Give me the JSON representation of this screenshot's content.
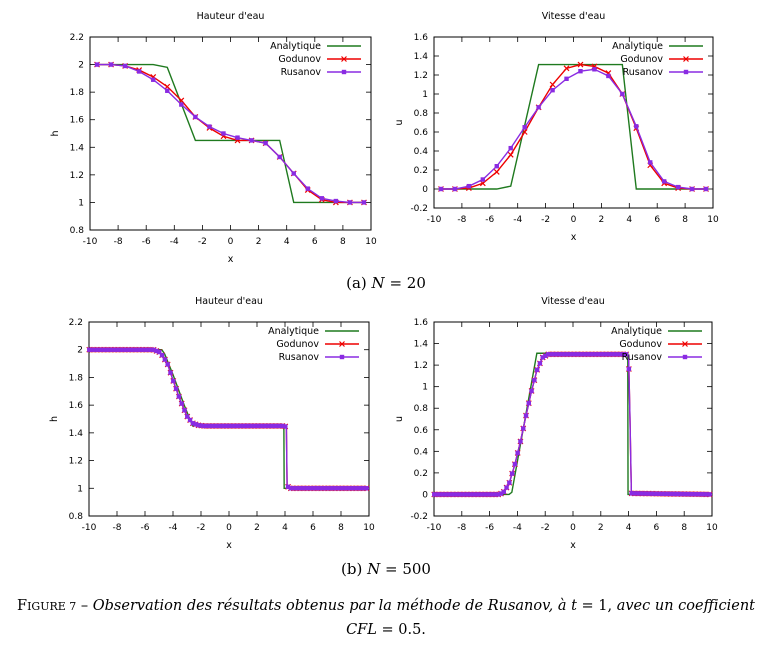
{
  "colors": {
    "analytique": "#1f7a1f",
    "godunov": "#ee0000",
    "rusanov": "#8a2be2",
    "axis": "#000000"
  },
  "legend": [
    "Analytique",
    "Godunov",
    "Rusanov"
  ],
  "subcaptions": {
    "a": {
      "prefix": "(a) ",
      "var": "N",
      "rest": " = 20"
    },
    "b": {
      "prefix": "(b) ",
      "var": "N",
      "rest": " = 500"
    }
  },
  "caption": {
    "label_first": "F",
    "label_rest": "IGURE 7",
    "dash": " – ",
    "text1": "Observation des résultats obtenus par la méthode de Rusanov, à ",
    "t_var": "t",
    "text2": " = 1, ",
    "text3": "avec un coefficient",
    "cfl": "CFL",
    "cfl_rest": " = 0.5."
  },
  "chart_data": [
    {
      "type": "line",
      "id": "h20",
      "title": "Hauteur d'eau",
      "xlabel": "x",
      "ylabel": "h",
      "xlim": [
        -10,
        10
      ],
      "ylim": [
        0.8,
        2.2
      ],
      "xticks": [
        -10,
        -8,
        -6,
        -4,
        -2,
        0,
        2,
        4,
        6,
        8,
        10
      ],
      "yticks": [
        0.8,
        1,
        1.2,
        1.4,
        1.6,
        1.8,
        2,
        2.2
      ],
      "legend_position": "top-right",
      "series": [
        {
          "name": "Analytique",
          "x": [
            -9.5,
            -5.5,
            -4.5,
            -2.5,
            3.5,
            4.5,
            9.5
          ],
          "y": [
            2,
            2,
            1.98,
            1.45,
            1.45,
            1,
            1
          ]
        },
        {
          "name": "Godunov",
          "x": [
            -9.5,
            -8.5,
            -7.5,
            -6.5,
            -5.5,
            -4.5,
            -3.5,
            -2.5,
            -1.5,
            -0.5,
            0.5,
            1.5,
            2.5,
            3.5,
            4.5,
            5.5,
            6.5,
            7.5,
            8.5,
            9.5
          ],
          "y": [
            2,
            2,
            1.99,
            1.96,
            1.91,
            1.84,
            1.74,
            1.62,
            1.54,
            1.48,
            1.45,
            1.45,
            1.43,
            1.33,
            1.21,
            1.09,
            1.02,
            1,
            1,
            1
          ]
        },
        {
          "name": "Rusanov",
          "x": [
            -9.5,
            -8.5,
            -7.5,
            -6.5,
            -5.5,
            -4.5,
            -3.5,
            -2.5,
            -1.5,
            -0.5,
            0.5,
            1.5,
            2.5,
            3.5,
            4.5,
            5.5,
            6.5,
            7.5,
            8.5,
            9.5
          ],
          "y": [
            2,
            2,
            1.99,
            1.95,
            1.89,
            1.81,
            1.71,
            1.62,
            1.55,
            1.5,
            1.47,
            1.45,
            1.43,
            1.33,
            1.21,
            1.1,
            1.03,
            1.01,
            1,
            1
          ]
        }
      ]
    },
    {
      "type": "line",
      "id": "u20",
      "title": "Vitesse d'eau",
      "xlabel": "x",
      "ylabel": "u",
      "xlim": [
        -10,
        10
      ],
      "ylim": [
        -0.2,
        1.6
      ],
      "xticks": [
        -10,
        -8,
        -6,
        -4,
        -2,
        0,
        2,
        4,
        6,
        8,
        10
      ],
      "yticks": [
        -0.2,
        0,
        0.2,
        0.4,
        0.6,
        0.8,
        1,
        1.2,
        1.4,
        1.6
      ],
      "legend_position": "top-right",
      "series": [
        {
          "name": "Analytique",
          "x": [
            -9.5,
            -5.5,
            -4.5,
            -2.5,
            3.5,
            4.5,
            9.5
          ],
          "y": [
            0,
            0,
            0.03,
            1.31,
            1.31,
            0,
            0
          ]
        },
        {
          "name": "Godunov",
          "x": [
            -9.5,
            -8.5,
            -7.5,
            -6.5,
            -5.5,
            -4.5,
            -3.5,
            -2.5,
            -1.5,
            -0.5,
            0.5,
            1.5,
            2.5,
            3.5,
            4.5,
            5.5,
            6.5,
            7.5,
            8.5,
            9.5
          ],
          "y": [
            0,
            0,
            0.01,
            0.06,
            0.18,
            0.36,
            0.6,
            0.86,
            1.1,
            1.27,
            1.31,
            1.29,
            1.22,
            1,
            0.64,
            0.25,
            0.06,
            0.01,
            0,
            0
          ]
        },
        {
          "name": "Rusanov",
          "x": [
            -9.5,
            -8.5,
            -7.5,
            -6.5,
            -5.5,
            -4.5,
            -3.5,
            -2.5,
            -1.5,
            -0.5,
            0.5,
            1.5,
            2.5,
            3.5,
            4.5,
            5.5,
            6.5,
            7.5,
            8.5,
            9.5
          ],
          "y": [
            0,
            0,
            0.03,
            0.1,
            0.24,
            0.43,
            0.65,
            0.86,
            1.04,
            1.16,
            1.24,
            1.26,
            1.19,
            1,
            0.66,
            0.28,
            0.08,
            0.02,
            0,
            0
          ]
        }
      ]
    },
    {
      "type": "line",
      "id": "h500",
      "title": "Hauteur d'eau",
      "xlabel": "x",
      "ylabel": "h",
      "xlim": [
        -10,
        10
      ],
      "ylim": [
        0.8,
        2.2
      ],
      "xticks": [
        -10,
        -8,
        -6,
        -4,
        -2,
        0,
        2,
        4,
        6,
        8,
        10
      ],
      "yticks": [
        0.8,
        1,
        1.2,
        1.4,
        1.6,
        1.8,
        2,
        2.2
      ],
      "legend_position": "top-right",
      "marker_step": 0.2,
      "series": [
        {
          "name": "Analytique",
          "x": [
            -10,
            -4.8,
            -4.6,
            -4,
            -3.2,
            -2.6,
            3.92,
            3.94,
            10
          ],
          "y": [
            2,
            2,
            1.97,
            1.82,
            1.6,
            1.45,
            1.45,
            1,
            1
          ]
        },
        {
          "name": "Godunov",
          "x": [
            -10,
            -5.4,
            -4.9,
            -4.4,
            -4,
            -3.5,
            -3,
            -2.6,
            -2.2,
            -1.8,
            4,
            4.1,
            4.15,
            4.3,
            10
          ],
          "y": [
            2,
            2,
            1.98,
            1.9,
            1.78,
            1.64,
            1.52,
            1.47,
            1.455,
            1.45,
            1.45,
            1.43,
            1.02,
            1,
            1
          ]
        },
        {
          "name": "Rusanov",
          "x": [
            -10,
            -5.4,
            -4.9,
            -4.4,
            -4,
            -3.5,
            -3,
            -2.6,
            -2.2,
            -1.8,
            4,
            4.1,
            4.15,
            4.3,
            10
          ],
          "y": [
            2,
            2,
            1.98,
            1.9,
            1.78,
            1.64,
            1.52,
            1.47,
            1.455,
            1.45,
            1.45,
            1.43,
            1.02,
            1,
            1
          ]
        }
      ]
    },
    {
      "type": "line",
      "id": "u500",
      "title": "Vitesse d'eau",
      "xlabel": "x",
      "ylabel": "u",
      "xlim": [
        -10,
        10
      ],
      "ylim": [
        -0.2,
        1.6
      ],
      "xticks": [
        -10,
        -8,
        -6,
        -4,
        -2,
        0,
        2,
        4,
        6,
        8,
        10
      ],
      "yticks": [
        -0.2,
        0,
        0.2,
        0.4,
        0.6,
        0.8,
        1,
        1.2,
        1.4,
        1.6
      ],
      "legend_position": "top-right",
      "marker_step": 0.2,
      "series": [
        {
          "name": "Analytique",
          "x": [
            -10,
            -4.6,
            -4.4,
            -2.6,
            3.94,
            3.96,
            10
          ],
          "y": [
            0,
            0,
            0.02,
            1.31,
            1.31,
            0,
            0
          ]
        },
        {
          "name": "Godunov",
          "x": [
            -10,
            -5.3,
            -5,
            -4.6,
            -4.2,
            -3.8,
            -3.4,
            -3,
            -2.6,
            -2.2,
            -1.8,
            3.9,
            4,
            4.1,
            4.2,
            10
          ],
          "y": [
            0,
            0,
            0.02,
            0.1,
            0.27,
            0.48,
            0.72,
            0.95,
            1.15,
            1.27,
            1.3,
            1.3,
            1.28,
            0.7,
            0.01,
            0
          ]
        },
        {
          "name": "Rusanov",
          "x": [
            -10,
            -5.3,
            -5,
            -4.6,
            -4.2,
            -3.8,
            -3.4,
            -3,
            -2.6,
            -2.2,
            -1.8,
            3.9,
            4,
            4.1,
            4.2,
            10
          ],
          "y": [
            0,
            0,
            0.02,
            0.1,
            0.27,
            0.48,
            0.72,
            0.95,
            1.15,
            1.27,
            1.3,
            1.3,
            1.28,
            0.7,
            0.01,
            0
          ]
        }
      ]
    }
  ]
}
